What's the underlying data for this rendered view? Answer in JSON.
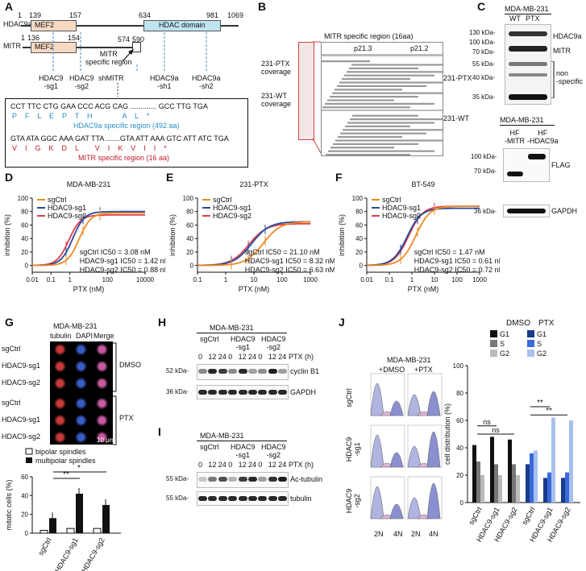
{
  "panels": {
    "A": "A",
    "B": "B",
    "C": "C",
    "D": "D",
    "E": "E",
    "F": "F",
    "G": "G",
    "H": "H",
    "I": "I",
    "J": "J"
  },
  "panelA": {
    "hdac9a_label": "HDAC9a",
    "mitr_label": "MITR",
    "n1": "1",
    "n139": "139",
    "n157": "157",
    "n634": "634",
    "n981": "981",
    "n1069": "1069",
    "m1": "1",
    "m136": "136",
    "m154": "154",
    "m574": "574",
    "m590": "590",
    "mef2": "MEF2",
    "hdac_domain": "HDAC domain",
    "mitr_specific": "MITR\nspecific region",
    "sg1": "HDAC9\n-sg1",
    "sg2": "HDAC9\n-sg2",
    "shmitr": "shMITR",
    "sh1": "HDAC9a\n-sh1",
    "sh2": "HDAC9a\n-sh2",
    "seq1": "CCT TTC CTG GAA CCC ACG CAG ............. GCC TTG TGA",
    "aa1": "P    F    L    E    P    T    H               A    L    *",
    "region1": "HDAC9a specific region (492 aa)",
    "seq2": "GTA ATA GGC AAA GAT TTA .......GTA ATT AAA GTC ATT ATC TGA",
    "aa2": "V    I    G    K    D    L        V    I    K    V    I    I    *",
    "region2": "MITR specific region (16 aa)"
  },
  "panelB": {
    "title": "MITR specific region (16aa)",
    "band1": "p21.3",
    "band2": "p21.2",
    "ptx": "231-PTX",
    "wt": "231-WT",
    "ptx_cov": "231-PTX\ncoverage",
    "wt_cov": "231-WT\ncoverage"
  },
  "panelC": {
    "cell": "MDA-MB-231",
    "wt": "WT",
    "ptx": "PTX",
    "kda": [
      "130 kDa-",
      "100 kDa-",
      "70 kDa-",
      "55 kDa-",
      "40 kDa-",
      "35 kDa-"
    ],
    "hdac9a": "HDAC9a",
    "mitr": "MITR",
    "nonspec": "non\n-specific",
    "cell2": "MDA-MB-231",
    "hf1": "HF\n-MITR",
    "hf2": "HF\n-HDAC9a",
    "kda2": [
      "100 kDa-",
      "70 kDa-",
      "36 kDa-"
    ],
    "flag": "FLAG",
    "gapdh": "GAPDH"
  },
  "curves": [
    {
      "title": "MDA-MB-231",
      "ylabel": "inhibition (%)",
      "xlabel": "PTX (nM)",
      "xticks": [
        "0.01",
        "0.1",
        "1",
        "100",
        "10000"
      ],
      "yticks": [
        "0",
        "20",
        "40",
        "60",
        "80",
        "100"
      ],
      "legend": [
        "sgCtrl",
        "HDAC9-sg1",
        "HDAC9-sg2"
      ],
      "ic50": [
        "sgCtrl IC50 = 3.08 nM",
        "HDAC9-sg1 IC50 = 1.42 nM",
        "HDAC9-sg2 IC50 = 0.88 nM"
      ],
      "ic": [
        3.08,
        1.42,
        0.88
      ],
      "xrange": [
        0.01,
        10000
      ],
      "yrange": [
        -10,
        100
      ],
      "top": [
        78,
        80,
        75
      ]
    },
    {
      "title": "231-PTX",
      "ylabel": "inhibition (%)",
      "xlabel": "PTX (nM)",
      "xticks": [
        "0.1",
        "1",
        "10",
        "100",
        "1000"
      ],
      "yticks": [
        "0",
        "20",
        "40",
        "60",
        "80",
        "100"
      ],
      "legend": [
        "sgCtrl",
        "HDAC9-sg1",
        "HDAC9-sg2"
      ],
      "ic50": [
        "sgCtrl IC50 = 21.10 nM",
        "HDAC9-sg1 IC50 = 8.32 nM",
        "HDAC9-sg2 IC50 = 6.63 nM"
      ],
      "ic": [
        21.1,
        8.32,
        6.63
      ],
      "xrange": [
        0.1,
        1000
      ],
      "yrange": [
        -10,
        100
      ],
      "top": [
        65,
        65,
        62
      ]
    },
    {
      "title": "BT-549",
      "ylabel": "inhibition (%)",
      "xlabel": "PTX (nM)",
      "xticks": [
        "0.01",
        "0.1",
        "1",
        "10",
        "100",
        "1000"
      ],
      "yticks": [
        "0",
        "20",
        "40",
        "60",
        "80",
        "100"
      ],
      "legend": [
        "sgCtrl",
        "HDAC9-sg1",
        "HDAC9-sg2"
      ],
      "ic50": [
        "sgCtrl IC50 = 1.47 nM",
        "HDAC9-sg1 IC50 = 0.61 nM",
        "HDAC9-sg2 IC50 = 0.72 nM"
      ],
      "ic": [
        1.47,
        0.61,
        0.72
      ],
      "xrange": [
        0.01,
        1000
      ],
      "yrange": [
        -10,
        100
      ],
      "top": [
        88,
        85,
        88
      ]
    }
  ],
  "panelG": {
    "cell": "MDA-MB-231",
    "cols": [
      "tubulin",
      "DAPI",
      "Merge"
    ],
    "rows": [
      "sgCtrl",
      "HDAC9-sg1",
      "HDAC9-sg2",
      "sgCtrl",
      "HDAC9-sg1",
      "HDAC9-sg2"
    ],
    "dmso": "DMSO",
    "ptx": "PTX",
    "scale": "10 μm",
    "legend": [
      "bipolar spindles",
      "multipolar spindles"
    ],
    "ylabel": "mitotic cells (%)",
    "yticks": [
      "0",
      "20",
      "40",
      "60"
    ],
    "cats": [
      "sgCtrl",
      "HDAC9-sg1",
      "HDAC9-sg2"
    ],
    "bipolar": [
      3,
      5,
      5
    ],
    "multipolar": [
      16,
      42,
      30
    ],
    "star1": "*",
    "star2": "**"
  },
  "panelH": {
    "cell": "MDA-MB-231",
    "groups": [
      "sgCtrl",
      "HDAC9\n-sg1",
      "HDAC9\n-sg2"
    ],
    "times": [
      "0",
      "12",
      "24",
      "0",
      "12",
      "24",
      "0",
      "12",
      "24"
    ],
    "ptxh": "PTX (h)",
    "kda": [
      "52 kDa-",
      "36 kDa-"
    ],
    "bands": [
      "cyclin B1",
      "GAPDH"
    ]
  },
  "panelI": {
    "cell": "MDA-MB-231",
    "groups": [
      "sgCtrl",
      "HDAC9\n-sg1",
      "HDAC9\n-sg2"
    ],
    "times": [
      "0",
      "12",
      "24",
      "0",
      "12",
      "24",
      "0",
      "12",
      "24"
    ],
    "ptxh": "PTX (h)",
    "kda": [
      "55 kDa-",
      "55 kDa-"
    ],
    "bands": [
      "Ac-tubulin",
      "tubulin"
    ]
  },
  "panelJ": {
    "cell": "MDA-MB-231",
    "dmso": "+DMSO",
    "ptx": "+PTX",
    "rows": [
      "sgCtrl",
      "HDAC9\n-sg1",
      "HDAC9\n-sg2"
    ],
    "x1": "2N",
    "x2": "4N",
    "x3": "2N",
    "x4": "4N",
    "legend_head": [
      "DMSO",
      "PTX"
    ],
    "legend": [
      "G1",
      "S",
      "G2"
    ],
    "ylabel": "cell distribution (%)",
    "yticks": [
      "0",
      "20",
      "40",
      "60",
      "80",
      "100"
    ],
    "cats": [
      "sgCtrl",
      "HDAC9-sg1",
      "HDAC9-sg2",
      "sgCtrl",
      "HDAC9-sg1",
      "HDAC9-sg2"
    ],
    "G1": [
      42,
      48,
      46,
      28,
      18,
      18
    ],
    "S": [
      30,
      28,
      28,
      36,
      22,
      22
    ],
    "G2": [
      20,
      20,
      20,
      38,
      62,
      60
    ],
    "ns": "ns",
    "stars": "**"
  },
  "colors": {
    "orange": "#f08a24",
    "blue": "#2a4a9c",
    "red": "#e0414b",
    "hdacbox": "#bfe3ef",
    "mefbox": "#f6d9c3",
    "teal": "#2a8fc4",
    "crimson": "#c21a2a"
  }
}
